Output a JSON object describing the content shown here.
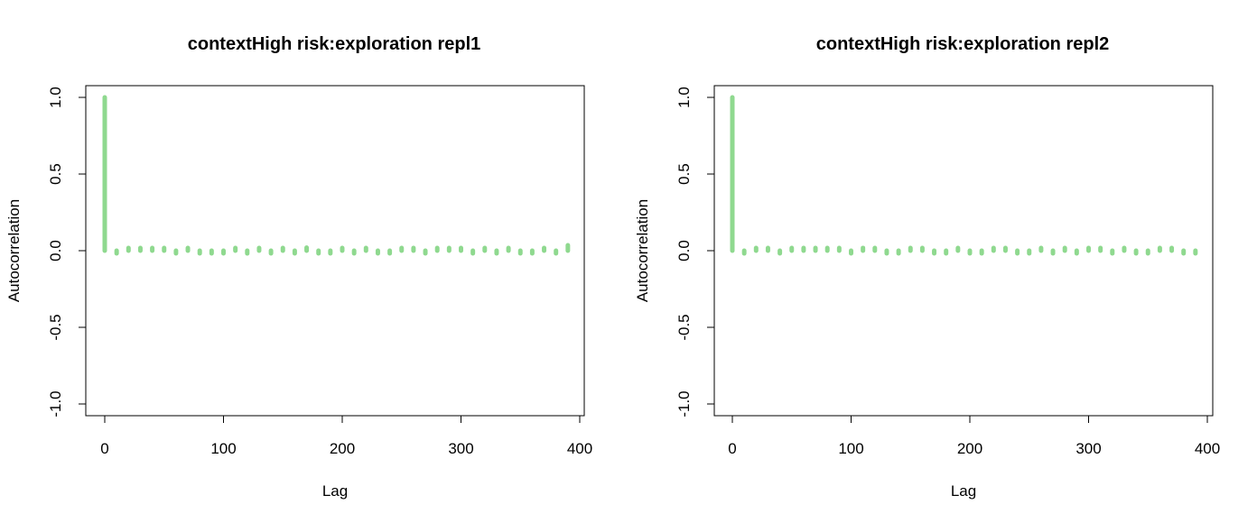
{
  "chart_data": [
    {
      "type": "bar",
      "title": "contextHigh risk:exploration repl1",
      "xlabel": "Lag",
      "ylabel": "Autocorrelation",
      "xlim": [
        0,
        400
      ],
      "ylim": [
        -1.0,
        1.0
      ],
      "xticks": [
        0,
        100,
        200,
        300,
        400
      ],
      "yticks": [
        "-1.0",
        "-0.5",
        "0.0",
        "0.5",
        "1.0"
      ],
      "grid": false,
      "color": "#8fd98f",
      "x": [
        0,
        10,
        20,
        30,
        40,
        50,
        60,
        70,
        80,
        90,
        100,
        110,
        120,
        130,
        140,
        150,
        160,
        170,
        180,
        190,
        200,
        210,
        220,
        230,
        240,
        250,
        260,
        270,
        280,
        290,
        300,
        310,
        320,
        330,
        340,
        350,
        360,
        370,
        380,
        390
      ],
      "values": [
        1.0,
        -0.015,
        0.01,
        0.005,
        0.005,
        0.012,
        -0.008,
        0.008,
        -0.005,
        -0.005,
        -0.015,
        0.01,
        -0.018,
        0.003,
        -0.002,
        0.006,
        -0.006,
        0.02,
        -0.01,
        -0.005,
        0.008,
        -0.008,
        0.012,
        -0.01,
        -0.012,
        0.003,
        0.01,
        -0.005,
        0.005,
        0.006,
        0.01,
        -0.015,
        0.003,
        -0.005,
        0.003,
        -0.004,
        -0.006,
        0.003,
        -0.008,
        0.035
      ]
    },
    {
      "type": "bar",
      "title": "contextHigh risk:exploration repl2",
      "xlabel": "Lag",
      "ylabel": "Autocorrelation",
      "xlim": [
        0,
        400
      ],
      "ylim": [
        -1.0,
        1.0
      ],
      "xticks": [
        0,
        100,
        200,
        300,
        400
      ],
      "yticks": [
        "-1.0",
        "-0.5",
        "0.0",
        "0.5",
        "1.0"
      ],
      "grid": false,
      "color": "#8fd98f",
      "x": [
        0,
        10,
        20,
        30,
        40,
        50,
        60,
        70,
        80,
        90,
        100,
        110,
        120,
        130,
        140,
        150,
        160,
        170,
        180,
        190,
        200,
        210,
        220,
        230,
        240,
        250,
        260,
        270,
        280,
        290,
        300,
        310,
        320,
        330,
        340,
        350,
        360,
        370,
        380,
        390
      ],
      "values": [
        1.0,
        -0.018,
        0.004,
        0.006,
        -0.006,
        0.006,
        0.01,
        0.004,
        0.003,
        0.004,
        -0.004,
        0.018,
        0.003,
        -0.002,
        -0.002,
        0.007,
        0.004,
        -0.008,
        -0.003,
        0.004,
        -0.002,
        -0.002,
        0.002,
        0.003,
        -0.008,
        -0.004,
        0.004,
        -0.016,
        0.008,
        -0.006,
        0.004,
        0.012,
        -0.014,
        0.006,
        -0.004,
        -0.003,
        0.002,
        0.008,
        -0.002,
        -0.004
      ]
    }
  ]
}
